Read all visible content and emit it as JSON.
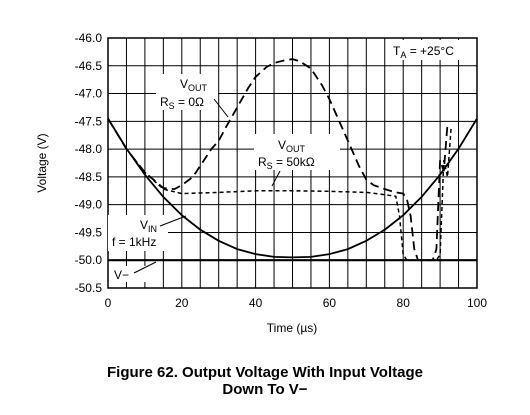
{
  "chart_data": {
    "type": "line",
    "xlabel": "Time (µs)",
    "ylabel": "Voltage (V)",
    "xlim": [
      0,
      100
    ],
    "ylim": [
      -50.5,
      -46.0
    ],
    "x_ticks": [
      "0",
      "20",
      "40",
      "60",
      "80",
      "100"
    ],
    "y_ticks": [
      "-46.0",
      "-46.5",
      "-47.0",
      "-47.5",
      "-48.0",
      "-48.5",
      "-49.0",
      "-49.5",
      "-50.0",
      "-50.5"
    ],
    "grid": true,
    "condition": "TA = +25°C",
    "series": [
      {
        "name": "VOUT RS = 0Ω",
        "style": "long-dash",
        "x": [
          0,
          5,
          10,
          15,
          18,
          20,
          23,
          25,
          28,
          30,
          32,
          35,
          38,
          40,
          43,
          45,
          48,
          50,
          52,
          55,
          58,
          60,
          63,
          65,
          68,
          70,
          72,
          75,
          78,
          80,
          81,
          82,
          83,
          84,
          88,
          89,
          90,
          91,
          92
        ],
        "y": [
          -47.45,
          -48.0,
          -48.42,
          -48.7,
          -48.72,
          -48.65,
          -48.5,
          -48.3,
          -48.0,
          -47.85,
          -47.6,
          -47.25,
          -46.9,
          -46.7,
          -46.52,
          -46.45,
          -46.4,
          -46.38,
          -46.42,
          -46.55,
          -46.85,
          -47.1,
          -47.55,
          -47.85,
          -48.3,
          -48.55,
          -48.65,
          -48.72,
          -48.78,
          -48.8,
          -48.9,
          -49.2,
          -49.8,
          -50.0,
          -50.0,
          -49.8,
          -48.2,
          -48.4,
          -47.55
        ]
      },
      {
        "name": "VOUT RS = 50kΩ",
        "style": "short-dash",
        "x": [
          0,
          5,
          10,
          15,
          20,
          30,
          40,
          50,
          60,
          70,
          75,
          78,
          79,
          80,
          81,
          82,
          85,
          88,
          89,
          90,
          91,
          92,
          93
        ],
        "y": [
          -47.45,
          -48.0,
          -48.42,
          -48.72,
          -48.8,
          -48.78,
          -48.75,
          -48.75,
          -48.76,
          -48.78,
          -48.82,
          -48.85,
          -49.2,
          -49.9,
          -50.0,
          -50.0,
          -50.0,
          -50.0,
          -50.0,
          -49.9,
          -48.2,
          -48.5,
          -47.6
        ]
      },
      {
        "name": "VIN f = 1kHz",
        "style": "solid",
        "x": [
          0,
          5,
          10,
          15,
          20,
          25,
          30,
          35,
          40,
          45,
          50,
          55,
          60,
          65,
          70,
          75,
          80,
          85,
          90,
          95,
          100
        ],
        "y": [
          -47.45,
          -47.99,
          -48.46,
          -48.86,
          -49.19,
          -49.45,
          -49.65,
          -49.8,
          -49.89,
          -49.94,
          -49.95,
          -49.94,
          -49.89,
          -49.8,
          -49.65,
          -49.45,
          -49.19,
          -48.86,
          -48.46,
          -47.99,
          -47.45
        ]
      },
      {
        "name": "V−",
        "style": "solid-thick",
        "x": [
          0,
          100
        ],
        "y": [
          -50.0,
          -50.0
        ]
      }
    ],
    "annotations": {
      "vout1_main": "VOUT",
      "vout1_sub": "RS = 0Ω",
      "vout2_main": "VOUT",
      "vout2_sub": "RS = 50kΩ",
      "vin_main": "VIN",
      "vin_sub": "f = 1kHz",
      "vminus": "V−",
      "temp": "TA = +25°C"
    }
  },
  "caption": {
    "line1": "Figure 62. Output Voltage With Input Voltage",
    "line2": "Down To V−"
  }
}
